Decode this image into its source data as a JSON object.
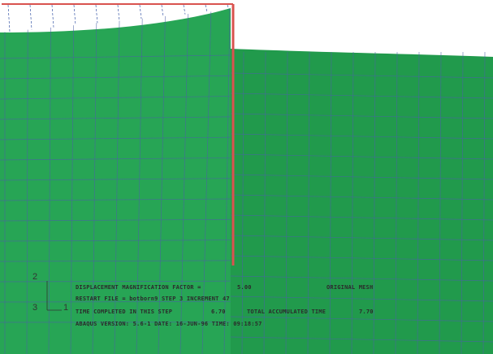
{
  "colors": {
    "mesh_fill": "#27a555",
    "mesh_fill_dark": "#219a4c",
    "grid_line": "#4b62a6",
    "outline": "#d9534f",
    "dashed": "#3c5aa8",
    "label_red": "#e06a3a",
    "text": "#2b2b2b"
  },
  "triad": {
    "axis_2": "2",
    "axis_3": "3",
    "axis_1": "1"
  },
  "info": {
    "line1_label": "DISPLACEMENT MAGNIFICATION FACTOR =",
    "line1_value": "5.00",
    "line1_red": "ORIGINAL MESH",
    "line2": "RESTART FILE = botborn9   STEP 3   INCREMENT 47",
    "line3_label": "TIME COMPLETED IN THIS STEP",
    "line3_value": "6.70",
    "line3_label2": "TOTAL ACCUMULATED TIME",
    "line3_value2": "7.70",
    "line4": "ABAQUS VERSION: 5.6-1    DATE: 16-JUN-96  TIME: 09:18:57"
  }
}
